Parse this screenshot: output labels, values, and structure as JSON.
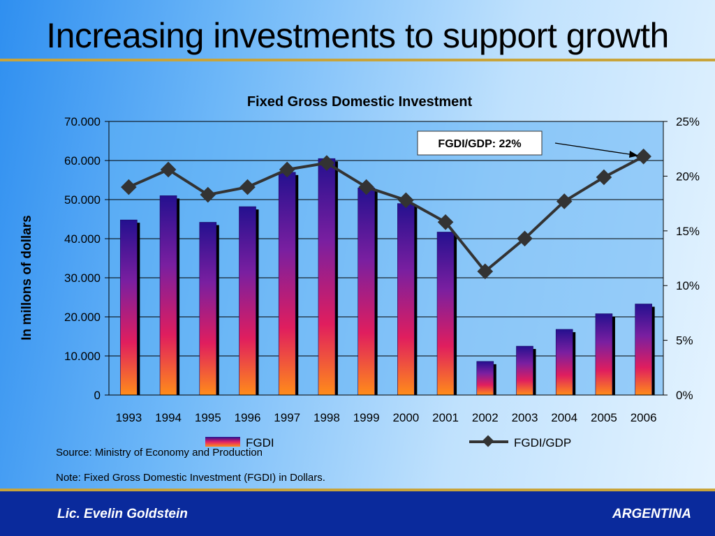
{
  "slide": {
    "title": "Increasing investments to support growth",
    "source": "Source: Ministry of Economy and Production",
    "note": "Note: Fixed Gross Domestic Investment (FGDI) in Dollars.",
    "footer_left": "Lic. Evelin Goldstein",
    "footer_right": "ARGENTINA"
  },
  "chart_data": {
    "type": "bar",
    "title": "Fixed Gross Domestic Investment",
    "ylabel": "In millons of dollars",
    "categories": [
      "1993",
      "1994",
      "1995",
      "1996",
      "1997",
      "1998",
      "1999",
      "2000",
      "2001",
      "2002",
      "2003",
      "2004",
      "2005",
      "2006"
    ],
    "ylim": [
      0,
      70000
    ],
    "y_ticks": [
      "0",
      "10.000",
      "20.000",
      "30.000",
      "40.000",
      "50.000",
      "60.000",
      "70.000"
    ],
    "y2lim": [
      0,
      25
    ],
    "y2_ticks": [
      "0%",
      "5%",
      "10%",
      "15%",
      "20%",
      "25%"
    ],
    "series": [
      {
        "name": "FGDI",
        "type": "bar",
        "axis": "left",
        "values": [
          44800,
          51000,
          44200,
          48200,
          57000,
          60500,
          53000,
          49000,
          41700,
          8600,
          12500,
          16800,
          20800,
          23300
        ]
      },
      {
        "name": "FGDI/GDP",
        "type": "line",
        "axis": "right",
        "values": [
          19.0,
          20.6,
          18.3,
          19.0,
          20.6,
          21.2,
          19.0,
          17.8,
          15.8,
          11.3,
          14.3,
          17.7,
          19.9,
          21.8
        ]
      }
    ],
    "annotation": "FGDI/GDP: 22%",
    "grid": true,
    "legend_position": "bottom",
    "colors": {
      "bar_top": "#2b1aa6",
      "bar_mid": "#e01e6a",
      "bar_bottom": "#ff8c1a",
      "line": "#333333",
      "plot_bg": "#5fb0f4"
    }
  }
}
